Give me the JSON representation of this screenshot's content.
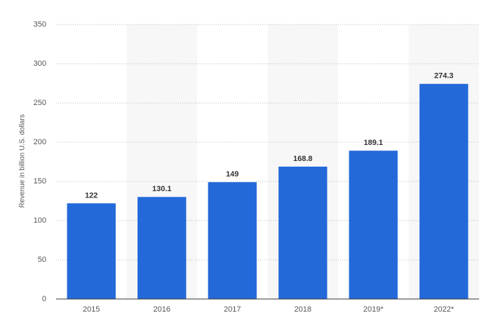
{
  "chart_data": {
    "type": "bar",
    "y_label": "Revenue in billion U.S. dollars",
    "categories": [
      "2015",
      "2016",
      "2017",
      "2018",
      "2019*",
      "2022*"
    ],
    "values": [
      122,
      130.1,
      149,
      168.8,
      189.1,
      274.3
    ],
    "color": "#2469d9",
    "ylim": [
      0,
      350
    ],
    "yticks": [
      0,
      50,
      100,
      150,
      200,
      250,
      300,
      350
    ],
    "grid": true
  }
}
